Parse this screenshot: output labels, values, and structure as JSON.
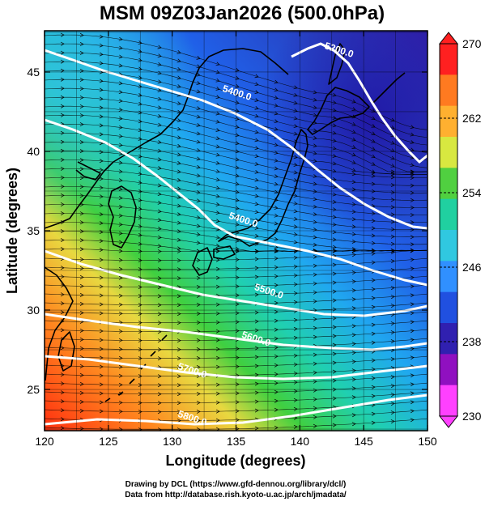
{
  "title": "MSM 09Z03Jan2026 (500.0hPa)",
  "x_axis": {
    "label": "Longitude (degrees)",
    "range": [
      120,
      150
    ],
    "ticks": [
      "120",
      "125",
      "130",
      "135",
      "140",
      "145",
      "150"
    ]
  },
  "y_axis": {
    "label": "Latitude  (degrees)",
    "range": [
      22.4,
      47.6
    ],
    "ticks": [
      "25",
      "30",
      "35",
      "40",
      "45"
    ]
  },
  "colorbar": {
    "min": 230,
    "max": 270,
    "ticks": [
      "270",
      "262",
      "254",
      "246",
      "238",
      "230"
    ],
    "colors": [
      "#ff2020",
      "#ff7a20",
      "#ffb030",
      "#d8e840",
      "#50d040",
      "#20d0a0",
      "#30c8e0",
      "#3090ff",
      "#2050e0",
      "#3020b0",
      "#9010c0",
      "#ff40ff"
    ]
  },
  "contours": [
    {
      "label": "5200.0",
      "lon": 143.0,
      "lat": 46.2
    },
    {
      "label": "5400.0",
      "lon": 135.5,
      "lat": 35.5
    },
    {
      "label": "5400.0",
      "lon": 135.0,
      "lat": 43.5
    },
    {
      "label": "5500.0",
      "lon": 137.5,
      "lat": 31.0
    },
    {
      "label": "5600.0",
      "lon": 136.5,
      "lat": 28.0
    },
    {
      "label": "5700.0",
      "lon": 131.5,
      "lat": 26.0
    },
    {
      "label": "5800.0",
      "lon": 131.5,
      "lat": 23.0
    }
  ],
  "credits": {
    "line1": "Drawing by DCL (https://www.gfd-dennou.org/library/dcl/)",
    "line2": "Data from http://database.rish.kyoto-u.ac.jp/arch/jmadata/"
  }
}
